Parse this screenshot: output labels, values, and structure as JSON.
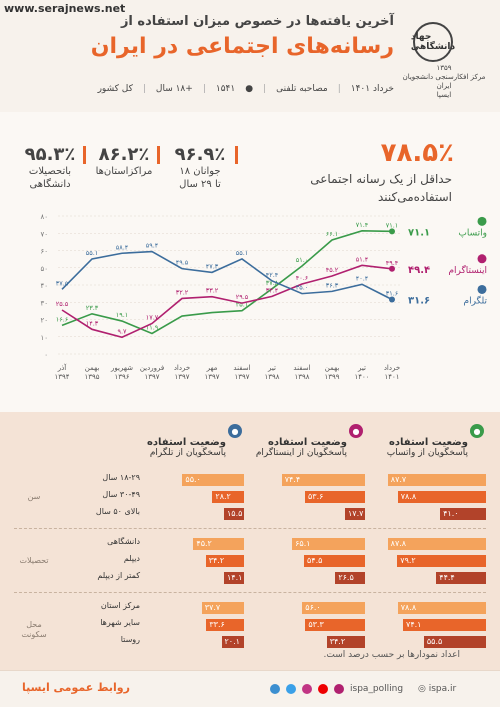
{
  "header": {
    "watermark": "www.serajnews.net",
    "subtitle": "آخرین یافته‌ها در خصوص میزان استفاده از",
    "title": "رسانه‌های اجتماعی در ایران",
    "meta_date": "خرداد ۱۴۰۱",
    "meta_method": "مصاحبه تلفنی",
    "meta_sample": "۱۵۴۱",
    "meta_age": "+۱۸ سال",
    "meta_scope": "کل کشور",
    "logo_text": "جهاد دانشگاهی",
    "logo_year": "۱۳۵۹",
    "logo_center": "مرکز افکارسنجی دانشجویان ایران",
    "logo_ispa": "ایسپا"
  },
  "stats": {
    "main_value": "۷۸.۵٪",
    "main_label_1": "حداقل از یک رسانه اجتماعی",
    "main_label_2": "استفاده‌می‌کنند",
    "s1_value": "۹۶.۹٪",
    "s1_label_1": "جوانان ۱۸",
    "s1_label_2": "تا ۲۹ سال",
    "s2_value": "۸۶.۲٪",
    "s2_label": "مراکزاستان‌ها",
    "s3_value": "۹۵.۳٪",
    "s3_label_1": "باتحصیلات",
    "s3_label_2": "دانشگاهی"
  },
  "chart_data": [
    {
      "type": "line",
      "categories": [
        "آذر ۱۳۹۴",
        "بهمن ۱۳۹۵",
        "شهریور ۱۳۹۶",
        "فروردین ۱۳۹۷",
        "خرداد ۱۳۹۷",
        "مهر ۱۳۹۷",
        "اسفند ۱۳۹۷",
        "تیر ۱۳۹۸",
        "اسفند ۱۳۹۸",
        "بهمن ۱۳۹۹",
        "تیر ۱۴۰۰",
        "خرداد ۱۴۰۱"
      ],
      "ylim": [
        0,
        80
      ],
      "yticks": [
        "۰",
        "۱۰",
        "۲۰",
        "۳۰",
        "۴۰",
        "۵۰",
        "۶۰",
        "۷۰",
        "۸۰"
      ],
      "series": [
        {
          "name": "واتساپ",
          "color": "#3a9b4a",
          "values": [
            16.6,
            23.3,
            19.1,
            11.9,
            22.0,
            24.0,
            25.1,
            37.8,
            51.0,
            66.1,
            71.4,
            71.1
          ],
          "labels": [
            "۱۶.۶",
            "۲۳.۳",
            "۱۹.۱",
            "۱۱.۹",
            "",
            "",
            "۲۵.۱",
            "۳۷.۸",
            "۵۱.۰",
            "۶۶.۱",
            "۷۱.۴",
            "۷۱.۱"
          ]
        },
        {
          "name": "اینستاگرام",
          "color": "#b0206f",
          "values": [
            25.5,
            14.3,
            9.7,
            17.7,
            32.2,
            33.2,
            29.5,
            33.4,
            40.6,
            45.2,
            51.4,
            49.4
          ],
          "labels": [
            "۲۵.۵",
            "۱۴.۳",
            "۹.۷",
            "۱۷.۷",
            "۳۲.۲",
            "۳۳.۲",
            "۲۹.۵",
            "۳۳.۴",
            "۴۰.۶",
            "۴۵.۲",
            "۵۱.۴",
            "۴۹.۴"
          ]
        },
        {
          "name": "تلگرام",
          "color": "#3c6d9c",
          "values": [
            37.5,
            55.1,
            58.4,
            59.4,
            49.5,
            47.3,
            55.1,
            42.4,
            35.0,
            36.3,
            40.4,
            31.6
          ],
          "labels": [
            "۳۷.۵",
            "۵۵.۱",
            "۵۸.۴",
            "۵۹.۴",
            "۴۹.۵",
            "۴۷.۳",
            "۵۵.۱",
            "۴۲.۴",
            "۳۵.۰",
            "۳۶.۳",
            "۴۰.۴",
            "۳۱.۶"
          ]
        }
      ],
      "end_labels": [
        "۷۱.۱",
        "۴۹.۴",
        "۳۱.۶"
      ]
    },
    {
      "type": "bar",
      "columns": [
        {
          "title": "وضعیت استفاده",
          "subtitle": "پاسخگویان از واتساپ",
          "icon": "whatsapp-icon",
          "color": "#3a9b4a"
        },
        {
          "title": "وضعیت استفاده",
          "subtitle": "پاسخگویان از اینستاگرام",
          "icon": "instagram-icon",
          "color": "#b0206f"
        },
        {
          "title": "وضعیت استفاده",
          "subtitle": "پاسخگویان از تلگرام",
          "icon": "telegram-icon",
          "color": "#3c6d9c"
        }
      ],
      "groups": [
        {
          "name": "سن",
          "rows": [
            {
              "label": "۱۸-۲۹ سال",
              "values": [
                87.7,
                74.4,
                55.0
              ],
              "labels": [
                "۸۷.۷",
                "۷۴.۴",
                "۵۵.۰"
              ]
            },
            {
              "label": "۳۰-۴۹ سال",
              "values": [
                78.8,
                53.6,
                28.2
              ],
              "labels": [
                "۷۸.۸",
                "۵۳.۶",
                "۲۸.۲"
              ]
            },
            {
              "label": "بالای ۵۰ سال",
              "values": [
                41.0,
                17.7,
                15.5
              ],
              "labels": [
                "۴۱.۰",
                "۱۷.۷",
                "۱۵.۵"
              ]
            }
          ]
        },
        {
          "name": "تحصیلات",
          "rows": [
            {
              "label": "دانشگاهی",
              "values": [
                87.8,
                65.1,
                45.2
              ],
              "labels": [
                "۸۷.۸",
                "۶۵.۱",
                "۴۵.۲"
              ]
            },
            {
              "label": "دیپلم",
              "values": [
                79.2,
                54.5,
                34.2
              ],
              "labels": [
                "۷۹.۲",
                "۵۴.۵",
                "۳۴.۲"
              ]
            },
            {
              "label": "کمتر از دیپلم",
              "values": [
                44.4,
                26.5,
                14.1
              ],
              "labels": [
                "۴۴.۴",
                "۲۶.۵",
                "۱۴.۱"
              ]
            }
          ]
        },
        {
          "name": "محل سکونت",
          "rows": [
            {
              "label": "مرکز استان",
              "values": [
                78.8,
                56.0,
                37.7
              ],
              "labels": [
                "۷۸.۸",
                "۵۶.۰",
                "۳۷.۷"
              ]
            },
            {
              "label": "سایر شهرها",
              "values": [
                74.1,
                53.3,
                33.6
              ],
              "labels": [
                "۷۴.۱",
                "۵۳.۳",
                "۳۳.۶"
              ]
            },
            {
              "label": "روستا",
              "values": [
                55.5,
                34.2,
                20.1
              ],
              "labels": [
                "۵۵.۵",
                "۳۴.۲",
                "۲۰.۱"
              ]
            }
          ]
        }
      ],
      "shade_colors": [
        "#f4a35c",
        "#e8652a",
        "#b2432a"
      ]
    }
  ],
  "footnote": "اعداد نمودارها بر حسب درصد است.",
  "footer": {
    "title": "روابط عمومی ایسپا",
    "handle": "ispa_polling",
    "site": "ispa.ir"
  }
}
